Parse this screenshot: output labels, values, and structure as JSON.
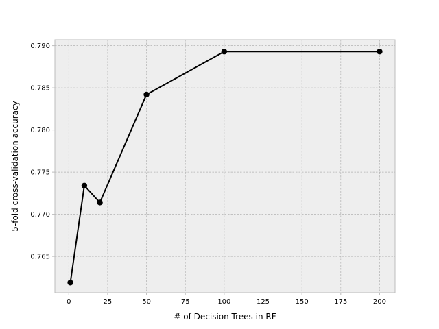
{
  "chart_data": {
    "type": "line",
    "title": "",
    "xlabel": "# of Decision Trees in RF",
    "ylabel": "5-fold cross-validation accuracy",
    "xlim": [
      -8.95,
      209.95
    ],
    "ylim": [
      0.7607,
      0.7907
    ],
    "xticks": [
      0,
      25,
      50,
      75,
      100,
      125,
      150,
      175,
      200
    ],
    "yticks": [
      0.765,
      0.77,
      0.775,
      0.78,
      0.785,
      0.79
    ],
    "ytick_format_decimals": 3,
    "grid": true,
    "legend": "none",
    "series": [
      {
        "x": [
          1,
          10,
          20,
          50,
          100,
          200
        ],
        "y": [
          0.7619,
          0.7734,
          0.7714,
          0.7842,
          0.7893,
          0.7893
        ],
        "color": "#000000",
        "marker": "circle"
      }
    ],
    "colors": {
      "plot_background": "#eeeeee",
      "grid": "#b0b0b0",
      "frame": "#bcbcbc",
      "line": "#000000"
    }
  }
}
